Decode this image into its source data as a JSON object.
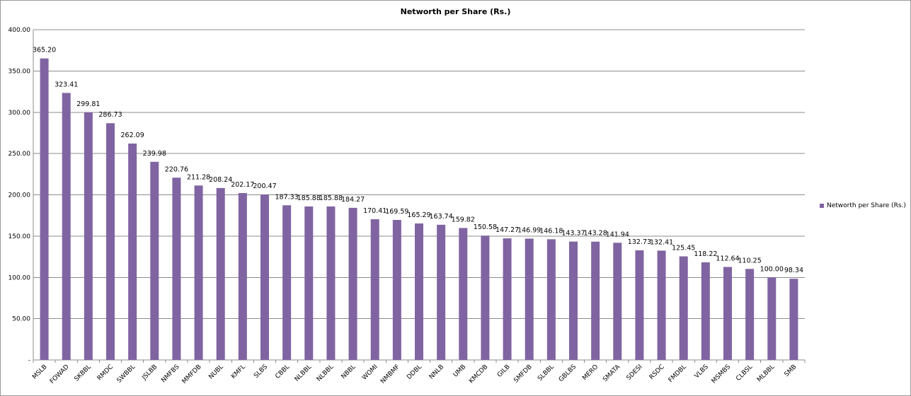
{
  "chart_data": {
    "type": "bar",
    "title": "Networth per Share (Rs.)",
    "xlabel": "",
    "ylabel": "",
    "ylim": [
      0,
      400
    ],
    "yticks": [
      {
        "value": 0,
        "label": "-"
      },
      {
        "value": 50,
        "label": "50.00"
      },
      {
        "value": 100,
        "label": "100.00"
      },
      {
        "value": 150,
        "label": "150.00"
      },
      {
        "value": 200,
        "label": "200.00"
      },
      {
        "value": 250,
        "label": "250.00"
      },
      {
        "value": 300,
        "label": "300.00"
      },
      {
        "value": 350,
        "label": "350.00"
      },
      {
        "value": 400,
        "label": "400.00"
      }
    ],
    "grid": true,
    "legend_position": "right",
    "categories": [
      "MSLB",
      "FOWAD",
      "SKBBL",
      "RMDC",
      "SWBBL",
      "JSLBB",
      "NMFBS",
      "MMFDB",
      "NUBL",
      "KMFL",
      "SLBS",
      "CBBL",
      "NLBBL",
      "NLBBL",
      "NBBL",
      "WOMI",
      "NMBMF",
      "DDBL",
      "NNLB",
      "UMB",
      "KMCDB",
      "GILB",
      "SMFDB",
      "SLBBL",
      "GBLBS",
      "MERO",
      "SMATA",
      "SDESI",
      "RSDC",
      "FMDBL",
      "VLBS",
      "MSMBS",
      "CLBSL",
      "MLBBL",
      "SMB"
    ],
    "series": [
      {
        "name": "Networth per Share (Rs.)",
        "color": "#8064a2",
        "values": [
          365.2,
          323.41,
          299.81,
          286.73,
          262.09,
          239.98,
          220.76,
          211.28,
          208.24,
          202.17,
          200.47,
          187.33,
          185.88,
          185.88,
          184.27,
          170.41,
          169.59,
          165.29,
          163.74,
          159.82,
          150.58,
          147.27,
          146.99,
          146.18,
          143.37,
          143.28,
          141.94,
          132.73,
          132.41,
          125.45,
          118.22,
          112.64,
          110.25,
          100.0,
          98.34
        ],
        "labels": [
          "365.20",
          "323.41",
          "299.81",
          "286.73",
          "262.09",
          "239.98",
          "220.76",
          "211.28",
          "208.24",
          "202.17",
          "200.47",
          "187.33",
          "185.88",
          "185.88",
          "184.27",
          "170.41",
          "169.59",
          "165.29",
          "163.74",
          "159.82",
          "150.58",
          "147.27",
          "146.99",
          "146.18",
          "143.37",
          "143.28",
          "141.94",
          "132.73",
          "132.41",
          "125.45",
          "118.22",
          "112.64",
          "110.25",
          "100.00",
          "98.34"
        ]
      }
    ]
  },
  "colors": {
    "gridline": "#8c8c8c",
    "axis": "#8c8c8c"
  }
}
